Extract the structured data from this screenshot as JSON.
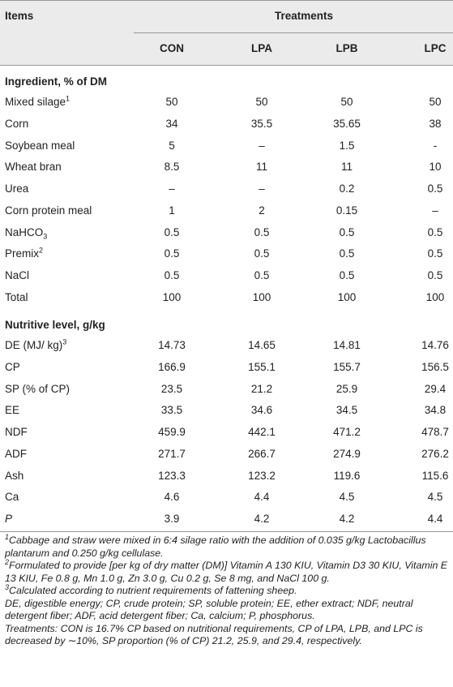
{
  "header": {
    "items": "Items",
    "treatments": "Treatments",
    "columns": [
      "CON",
      "LPA",
      "LPB",
      "LPC"
    ]
  },
  "sections": [
    {
      "title": "Ingredient, % of DM",
      "rows": [
        {
          "label": "Mixed silage",
          "sup": "1",
          "values": [
            50,
            50,
            50,
            50
          ]
        },
        {
          "label": "Corn",
          "values": [
            34,
            35.5,
            35.65,
            38
          ]
        },
        {
          "label": "Soybean meal",
          "values": [
            5,
            "–",
            1.5,
            "-"
          ]
        },
        {
          "label": "Wheat bran",
          "values": [
            8.5,
            11,
            11,
            10
          ]
        },
        {
          "label": "Urea",
          "values": [
            "–",
            "–",
            0.2,
            0.5
          ]
        },
        {
          "label": "Corn protein meal",
          "values": [
            1,
            2,
            0.15,
            "–"
          ]
        },
        {
          "label": "NaHCO",
          "sub": "3",
          "values": [
            0.5,
            0.5,
            0.5,
            0.5
          ]
        },
        {
          "label": "Premix",
          "sup": "2",
          "values": [
            0.5,
            0.5,
            0.5,
            0.5
          ]
        },
        {
          "label": "NaCl",
          "values": [
            0.5,
            0.5,
            0.5,
            0.5
          ]
        },
        {
          "label": "Total",
          "values": [
            100,
            100,
            100,
            100
          ]
        }
      ]
    },
    {
      "title": "Nutritive level, g/kg",
      "rows": [
        {
          "label": "DE (MJ/ kg)",
          "sup": "3",
          "values": [
            14.73,
            14.65,
            14.81,
            14.76
          ]
        },
        {
          "label": "CP",
          "values": [
            166.9,
            155.1,
            155.7,
            156.5
          ]
        },
        {
          "label": "SP (% of CP)",
          "values": [
            23.5,
            21.2,
            25.9,
            29.4
          ]
        },
        {
          "label": "EE",
          "values": [
            33.5,
            34.6,
            34.5,
            34.8
          ]
        },
        {
          "label": "NDF",
          "values": [
            459.9,
            442.1,
            471.2,
            478.7
          ]
        },
        {
          "label": "ADF",
          "values": [
            271.7,
            266.7,
            274.9,
            276.2
          ]
        },
        {
          "label": "Ash",
          "values": [
            123.3,
            123.2,
            119.6,
            115.6
          ]
        },
        {
          "label": "Ca",
          "values": [
            4.6,
            4.4,
            4.5,
            4.5
          ]
        },
        {
          "label": "P",
          "italic": true,
          "values": [
            3.9,
            4.2,
            4.2,
            4.4
          ]
        }
      ]
    }
  ],
  "footnotes": [
    {
      "mark": "1",
      "text": "Cabbage and straw were mixed in 6:4 silage ratio with the addition of 0.035 g/kg Lactobacillus plantarum and 0.250 g/kg cellulase."
    },
    {
      "mark": "2",
      "text": "Formulated to provide [per kg of dry matter (DM)] Vitamin A 130 KIU, Vitamin D3 30 KIU, Vitamin E 13 KIU, Fe 0.8 g, Mn 1.0 g, Zn 3.0 g, Cu 0.2 g, Se 8 mg, and NaCl 100 g."
    },
    {
      "mark": "3",
      "text": "Calculated according to nutrient requirements of fattening sheep."
    },
    {
      "text": "DE, digestible energy; CP, crude protein; SP, soluble protein; EE, ether extract; NDF, neutral detergent fiber; ADF, acid detergent fiber; Ca, calcium; P, phosphorus."
    },
    {
      "text": "Treatments: CON is 16.7% CP based on nutritional requirements, CP of LPA, LPB, and LPC is decreased by ∼10%, SP proportion (% of CP) 21.2, 25.9, and 29.4, respectively."
    }
  ]
}
